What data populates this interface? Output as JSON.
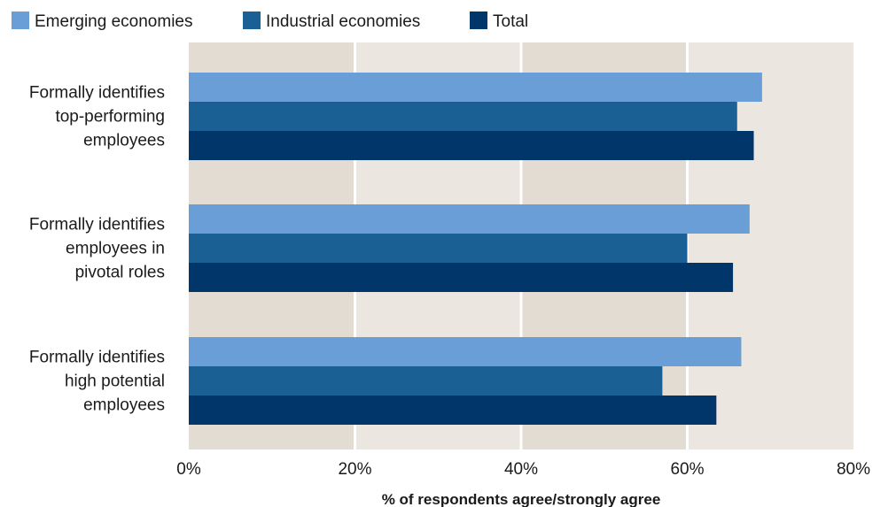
{
  "chart_data": {
    "type": "bar",
    "orientation": "horizontal",
    "categories": [
      "Formally identifies top-performing employees",
      "Formally identifies employees in pivotal roles",
      "Formally identifies high potential employees"
    ],
    "category_label_lines": [
      [
        "Formally identifies",
        "top-performing",
        "employees"
      ],
      [
        "Formally identifies",
        "employees in",
        "pivotal roles"
      ],
      [
        "Formally identifies",
        "high potential",
        "employees"
      ]
    ],
    "series": [
      {
        "name": "Emerging economies",
        "values": [
          69,
          67.5,
          66.5
        ],
        "color": "#6a9ed6"
      },
      {
        "name": "Industrial economies",
        "values": [
          66,
          60,
          57
        ],
        "color": "#1b6094"
      },
      {
        "name": "Total",
        "values": [
          68,
          65.5,
          63.5
        ],
        "color": "#00366a"
      }
    ],
    "xlabel": "% of respondents agree/strongly agree",
    "xlim": [
      0,
      80
    ],
    "xticks": [
      0,
      20,
      40,
      60,
      80
    ],
    "xtick_labels": [
      "0%",
      "20%",
      "40%",
      "60%",
      "80%"
    ],
    "legend_position": "top-left",
    "background_bands": [
      "#e3dcd3",
      "#ebe6e0"
    ],
    "gridline_color": "#ffffff"
  }
}
